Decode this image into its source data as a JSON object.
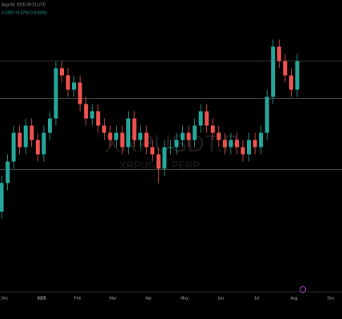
{
  "chart_data": {
    "type": "candlestick",
    "header": "Aug 08, 2025 09:21 UTC",
    "quote": "3.3302 +0.0792 (+2.43%)",
    "watermark": "XRPUSDT.P",
    "watermark_sub": "XRPUSDT PERP",
    "x_labels": [
      "Dec",
      "2025",
      "Feb",
      "Mar",
      "Apr",
      "May",
      "Jun",
      "Jul",
      "Aug",
      "Dec"
    ],
    "ylim": [
      0.15,
      4.15
    ],
    "levels": [
      3.3,
      2.78,
      1.79
    ],
    "up_color": "#26a69a",
    "down_color": "#ef5350",
    "open": [
      1.2,
      1.6,
      1.9,
      2.3,
      2.1,
      2.4,
      2.2,
      2.0,
      2.3,
      2.5,
      3.2,
      3.1,
      2.9,
      3.0,
      2.7,
      2.5,
      2.6,
      2.4,
      2.3,
      2.2,
      2.3,
      2.1,
      2.5,
      2.2,
      2.3,
      2.1,
      2.0,
      1.8,
      2.1,
      2.1,
      2.2,
      2.3,
      2.2,
      2.4,
      2.6,
      2.4,
      2.3,
      2.2,
      2.1,
      2.2,
      2.1,
      2.0,
      2.2,
      2.1,
      2.3,
      2.8,
      3.5,
      3.3,
      3.1,
      2.9
    ],
    "high": [
      1.7,
      2.0,
      2.4,
      2.4,
      2.5,
      2.5,
      2.3,
      2.4,
      2.6,
      3.3,
      3.3,
      3.2,
      3.1,
      3.1,
      2.8,
      2.7,
      2.7,
      2.5,
      2.4,
      2.4,
      2.4,
      2.6,
      2.6,
      2.4,
      2.4,
      2.2,
      2.1,
      2.2,
      2.2,
      2.3,
      2.4,
      2.4,
      2.5,
      2.7,
      2.7,
      2.5,
      2.4,
      2.3,
      2.3,
      2.3,
      2.2,
      2.3,
      2.3,
      2.4,
      2.9,
      3.6,
      3.6,
      3.4,
      3.2,
      3.4
    ],
    "low": [
      1.1,
      1.5,
      1.8,
      2.0,
      2.0,
      2.1,
      1.9,
      1.9,
      2.2,
      2.4,
      3.0,
      2.8,
      2.8,
      2.6,
      2.4,
      2.4,
      2.3,
      2.2,
      2.1,
      2.1,
      2.0,
      2.0,
      2.1,
      2.1,
      2.0,
      1.9,
      1.6,
      1.7,
      2.0,
      2.0,
      2.1,
      2.1,
      2.1,
      2.3,
      2.3,
      2.2,
      2.1,
      2.0,
      2.0,
      2.0,
      1.9,
      1.9,
      2.0,
      2.0,
      2.2,
      2.7,
      3.2,
      3.0,
      2.8,
      2.8
    ],
    "close": [
      1.6,
      1.9,
      2.3,
      2.1,
      2.4,
      2.2,
      2.0,
      2.3,
      2.5,
      3.2,
      3.1,
      2.9,
      3.0,
      2.7,
      2.5,
      2.6,
      2.4,
      2.3,
      2.2,
      2.3,
      2.1,
      2.5,
      2.2,
      2.3,
      2.1,
      2.0,
      1.8,
      2.1,
      2.1,
      2.2,
      2.3,
      2.2,
      2.4,
      2.6,
      2.4,
      2.3,
      2.2,
      2.1,
      2.2,
      2.1,
      2.0,
      2.2,
      2.1,
      2.3,
      2.8,
      3.5,
      3.3,
      3.1,
      2.9,
      3.3
    ]
  }
}
